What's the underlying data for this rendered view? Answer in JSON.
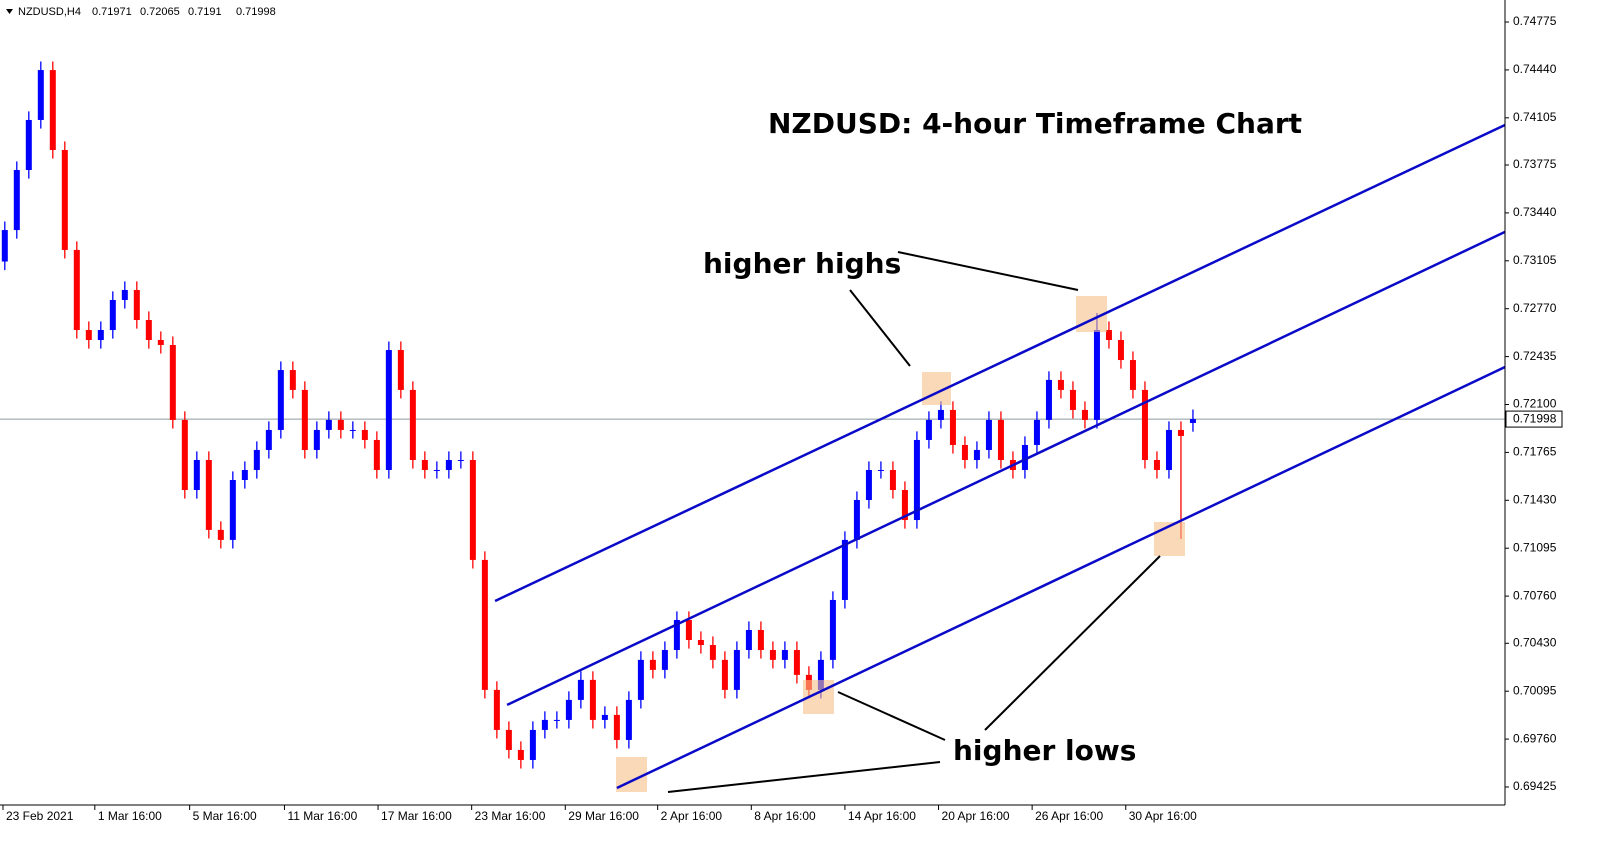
{
  "chart_data": {
    "type": "candlestick",
    "symbol": "NZDUSD,H4",
    "title": "NZDUSD: 4-hour Timeframe Chart",
    "annotations": [
      "higher highs",
      "higher lows"
    ],
    "up_color": "#0000ff",
    "down_color": "#ff0000",
    "trendline_color": "#0a0ac8",
    "bid_line_color": "#8c9aa0",
    "open": [
      0.731,
      0.7332,
      0.7374,
      0.7409,
      0.74439,
      0.7388,
      0.73181,
      0.72621,
      0.72551,
      0.72621,
      0.72831,
      0.72901,
      0.72691,
      0.72551,
      0.72516,
      0.71992,
      0.71502,
      0.71712,
      0.71223,
      0.71153,
      0.71572,
      0.71642,
      0.71782,
      0.71922,
      0.72341,
      0.72202,
      0.71782,
      0.71922,
      0.71992,
      0.71922,
      0.71922,
      0.71852,
      0.71642,
      0.72481,
      0.72202,
      0.71712,
      0.71642,
      0.71642,
      0.71712,
      0.71712,
      0.71013,
      0.70104,
      0.69824,
      0.69684,
      0.69614,
      0.69824,
      0.69894,
      0.69894,
      0.70034,
      0.70174,
      0.69894,
      0.69929,
      0.69754,
      0.70034,
      0.70314,
      0.70244,
      0.70383,
      0.70593,
      0.70453,
      0.70418,
      0.70314,
      0.70104,
      0.70383,
      0.70523,
      0.70383,
      0.70314,
      0.70383,
      0.70209,
      0.70104,
      0.70314,
      0.70733,
      0.71153,
      0.71432,
      0.71642,
      0.71642,
      0.71502,
      0.71292,
      0.71852,
      0.71992,
      0.72062,
      0.71817,
      0.71712,
      0.71782,
      0.71992,
      0.71712,
      0.71642,
      0.71817,
      0.71992,
      0.72272,
      0.72202,
      0.72062,
      0.71992,
      0.72621,
      0.72551,
      0.72411,
      0.72202,
      0.71712,
      0.71642,
      0.71922,
      0.71971
    ],
    "high": [
      0.7338,
      0.738,
      0.7415,
      0.74499,
      0.74499,
      0.7394,
      0.73241,
      0.72681,
      0.72681,
      0.72891,
      0.72961,
      0.72961,
      0.72751,
      0.72611,
      0.72576,
      0.72052,
      0.71772,
      0.71772,
      0.71283,
      0.71632,
      0.71702,
      0.71842,
      0.71982,
      0.72401,
      0.72401,
      0.72262,
      0.71982,
      0.72052,
      0.72052,
      0.71982,
      0.71982,
      0.71912,
      0.72541,
      0.72541,
      0.72262,
      0.71772,
      0.71702,
      0.71772,
      0.71772,
      0.71772,
      0.71073,
      0.70164,
      0.69884,
      0.69744,
      0.69884,
      0.69954,
      0.69954,
      0.70094,
      0.70234,
      0.70234,
      0.69989,
      0.69989,
      0.70094,
      0.70374,
      0.70374,
      0.70443,
      0.70653,
      0.70653,
      0.70513,
      0.70478,
      0.70374,
      0.70443,
      0.70583,
      0.70583,
      0.70443,
      0.70443,
      0.70443,
      0.70269,
      0.70374,
      0.70793,
      0.71213,
      0.71492,
      0.71702,
      0.71702,
      0.71702,
      0.71562,
      0.71912,
      0.72052,
      0.72122,
      0.72122,
      0.71877,
      0.71842,
      0.72052,
      0.72052,
      0.71772,
      0.71877,
      0.72052,
      0.72332,
      0.72332,
      0.72262,
      0.72122,
      0.7274,
      0.72681,
      0.72611,
      0.72471,
      0.72262,
      0.71772,
      0.71982,
      0.71982,
      0.72065
    ],
    "low": [
      0.7304,
      0.7326,
      0.7368,
      0.7403,
      0.7382,
      0.73121,
      0.72561,
      0.72491,
      0.72491,
      0.72561,
      0.72771,
      0.72631,
      0.72491,
      0.72456,
      0.71932,
      0.71442,
      0.71442,
      0.71163,
      0.71093,
      0.71093,
      0.71512,
      0.71582,
      0.71722,
      0.71862,
      0.72142,
      0.71722,
      0.71722,
      0.71862,
      0.71862,
      0.71862,
      0.71792,
      0.71582,
      0.71582,
      0.72142,
      0.71652,
      0.71582,
      0.71582,
      0.71582,
      0.71652,
      0.70953,
      0.70044,
      0.69764,
      0.69624,
      0.69554,
      0.69554,
      0.69764,
      0.69834,
      0.69834,
      0.69974,
      0.69834,
      0.69834,
      0.69694,
      0.69694,
      0.69974,
      0.70184,
      0.70184,
      0.70323,
      0.70393,
      0.70358,
      0.70254,
      0.70044,
      0.70044,
      0.70323,
      0.70323,
      0.70254,
      0.70254,
      0.70149,
      0.70044,
      0.70044,
      0.70254,
      0.70673,
      0.71093,
      0.71372,
      0.71582,
      0.71442,
      0.71232,
      0.71232,
      0.71792,
      0.71932,
      0.71757,
      0.71652,
      0.71652,
      0.71722,
      0.71652,
      0.71582,
      0.71582,
      0.71757,
      0.71932,
      0.72142,
      0.72002,
      0.71932,
      0.71932,
      0.72491,
      0.72351,
      0.72142,
      0.71652,
      0.71582,
      0.71582,
      0.7116,
      0.7191
    ],
    "close": [
      0.7332,
      0.7374,
      0.7409,
      0.74439,
      0.7388,
      0.73181,
      0.72621,
      0.72551,
      0.72621,
      0.72831,
      0.72901,
      0.72691,
      0.72551,
      0.72516,
      0.71992,
      0.71502,
      0.71712,
      0.71223,
      0.71153,
      0.71572,
      0.71642,
      0.71782,
      0.71922,
      0.72341,
      0.72202,
      0.71782,
      0.71922,
      0.71992,
      0.71922,
      0.71922,
      0.71852,
      0.71642,
      0.72481,
      0.72202,
      0.71712,
      0.71642,
      0.71642,
      0.71712,
      0.71712,
      0.71013,
      0.70104,
      0.69824,
      0.69684,
      0.69614,
      0.69824,
      0.69894,
      0.69894,
      0.70034,
      0.70174,
      0.69894,
      0.69929,
      0.69754,
      0.70034,
      0.70314,
      0.70244,
      0.70383,
      0.70593,
      0.70453,
      0.70418,
      0.70314,
      0.70104,
      0.70383,
      0.70523,
      0.70383,
      0.70314,
      0.70383,
      0.70209,
      0.70104,
      0.70314,
      0.70733,
      0.71153,
      0.71432,
      0.71642,
      0.71642,
      0.71502,
      0.71292,
      0.71852,
      0.71992,
      0.72062,
      0.71817,
      0.71712,
      0.71782,
      0.71992,
      0.71712,
      0.71642,
      0.71817,
      0.71992,
      0.72272,
      0.72202,
      0.72062,
      0.71992,
      0.72621,
      0.72551,
      0.72411,
      0.72202,
      0.71712,
      0.71642,
      0.71922,
      0.7188,
      0.71998
    ],
    "xlim": [
      -0.4,
      125
    ],
    "xticks": [
      {
        "value": -0.15,
        "label": "23 Feb 2021"
      },
      {
        "value": 7.5,
        "label": "1 Mar 16:00"
      },
      {
        "value": 15.4,
        "label": "5 Mar 16:00"
      },
      {
        "value": 23.3,
        "label": "11 Mar 16:00"
      },
      {
        "value": 31.1,
        "label": "17 Mar 16:00"
      },
      {
        "value": 38.9,
        "label": "23 Mar 16:00"
      },
      {
        "value": 46.7,
        "label": "29 Mar 16:00"
      },
      {
        "value": 54.4,
        "label": "2 Apr 16:00"
      },
      {
        "value": 62.2,
        "label": "8 Apr 16:00"
      },
      {
        "value": 70.0,
        "label": "14 Apr 16:00"
      },
      {
        "value": 77.8,
        "label": "20 Apr 16:00"
      },
      {
        "value": 85.6,
        "label": "26 Apr 16:00"
      },
      {
        "value": 93.4,
        "label": "30 Apr 16:00"
      }
    ],
    "ylim": [
      0.69299,
      0.74929
    ],
    "yticks": [
      0.74775,
      {
        "value": 0.7444,
        "label": "0.74440"
      },
      0.74105,
      0.73775,
      {
        "value": 0.7344,
        "label": "0.73440"
      },
      0.73105,
      {
        "value": 0.7277,
        "label": "0.72770"
      },
      0.72435,
      {
        "value": 0.721,
        "label": "0.72100"
      },
      0.71765,
      {
        "value": 0.7143,
        "label": "0.71430"
      },
      0.71095,
      {
        "value": 0.7076,
        "label": "0.70760"
      },
      {
        "value": 0.7043,
        "label": "0.70430"
      },
      0.70095,
      {
        "value": 0.6976,
        "label": "0.69760"
      },
      0.69425
    ],
    "trendlines": [
      {
        "x": [
          40.85,
          125
        ],
        "y": [
          0.70726,
          0.74055
        ]
      },
      {
        "x": [
          41.85,
          125
        ],
        "y": [
          0.69999,
          0.73307
        ]
      },
      {
        "x": [
          51.0,
          125
        ],
        "y": [
          0.69418,
          0.72362
        ]
      }
    ]
  }
}
